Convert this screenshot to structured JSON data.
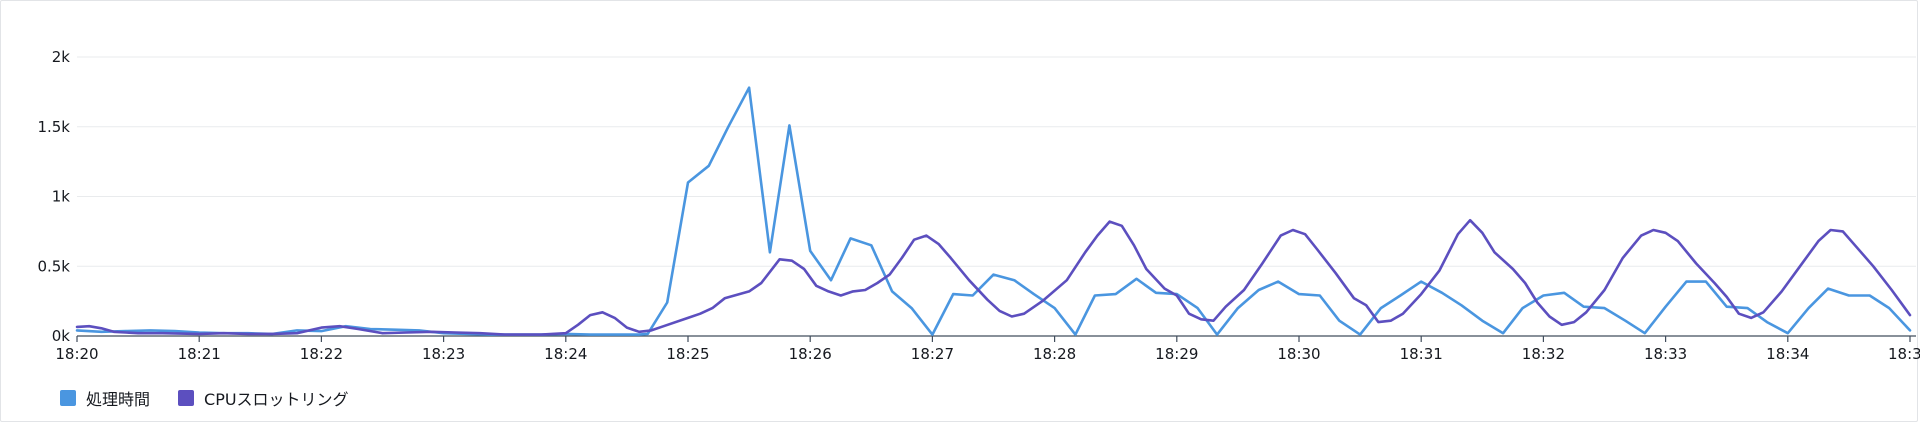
{
  "chart_data": {
    "type": "line",
    "x_ticks": [
      "18:20",
      "18:21",
      "18:22",
      "18:23",
      "18:24",
      "18:25",
      "18:26",
      "18:27",
      "18:28",
      "18:29",
      "18:30",
      "18:31",
      "18:32",
      "18:33",
      "18:34",
      "18:3"
    ],
    "y_ticks": [
      "0k",
      "0.5k",
      "1k",
      "1.5k",
      "2k"
    ],
    "ylim": [
      0,
      2000
    ],
    "xlim_minutes": [
      0,
      15
    ],
    "grid": "horizontal",
    "legend_position": "bottom-left",
    "series": [
      {
        "name": "処理時間",
        "color": "#4a96e0",
        "points": [
          [
            0,
            40
          ],
          [
            0.2,
            30
          ],
          [
            0.4,
            35
          ],
          [
            0.6,
            40
          ],
          [
            0.8,
            35
          ],
          [
            1,
            25
          ],
          [
            1.2,
            20
          ],
          [
            1.4,
            20
          ],
          [
            1.6,
            15
          ],
          [
            1.8,
            40
          ],
          [
            2,
            35
          ],
          [
            2.2,
            70
          ],
          [
            2.4,
            50
          ],
          [
            2.6,
            45
          ],
          [
            2.8,
            40
          ],
          [
            3,
            20
          ],
          [
            3.2,
            15
          ],
          [
            3.4,
            10
          ],
          [
            3.6,
            10
          ],
          [
            3.8,
            10
          ],
          [
            4,
            15
          ],
          [
            4.2,
            10
          ],
          [
            4.4,
            10
          ],
          [
            4.6,
            10
          ],
          [
            4.67,
            15
          ],
          [
            4.83,
            240
          ],
          [
            5,
            1100
          ],
          [
            5.17,
            1220
          ],
          [
            5.33,
            1500
          ],
          [
            5.5,
            1780
          ],
          [
            5.67,
            600
          ],
          [
            5.83,
            1510
          ],
          [
            6,
            610
          ],
          [
            6.17,
            400
          ],
          [
            6.33,
            700
          ],
          [
            6.5,
            650
          ],
          [
            6.67,
            320
          ],
          [
            6.83,
            200
          ],
          [
            7,
            10
          ],
          [
            7.17,
            300
          ],
          [
            7.33,
            290
          ],
          [
            7.5,
            440
          ],
          [
            7.67,
            400
          ],
          [
            7.83,
            300
          ],
          [
            8,
            200
          ],
          [
            8.17,
            10
          ],
          [
            8.33,
            290
          ],
          [
            8.5,
            300
          ],
          [
            8.67,
            410
          ],
          [
            8.83,
            310
          ],
          [
            9,
            300
          ],
          [
            9.17,
            200
          ],
          [
            9.33,
            10
          ],
          [
            9.5,
            200
          ],
          [
            9.67,
            330
          ],
          [
            9.83,
            390
          ],
          [
            10,
            300
          ],
          [
            10.17,
            290
          ],
          [
            10.33,
            110
          ],
          [
            10.5,
            10
          ],
          [
            10.67,
            200
          ],
          [
            10.83,
            290
          ],
          [
            11,
            390
          ],
          [
            11.17,
            310
          ],
          [
            11.33,
            220
          ],
          [
            11.5,
            110
          ],
          [
            11.67,
            20
          ],
          [
            11.83,
            200
          ],
          [
            12,
            290
          ],
          [
            12.17,
            310
          ],
          [
            12.33,
            210
          ],
          [
            12.5,
            200
          ],
          [
            12.67,
            110
          ],
          [
            12.83,
            20
          ],
          [
            13,
            210
          ],
          [
            13.17,
            390
          ],
          [
            13.33,
            390
          ],
          [
            13.5,
            210
          ],
          [
            13.67,
            200
          ],
          [
            13.83,
            100
          ],
          [
            14,
            20
          ],
          [
            14.17,
            200
          ],
          [
            14.33,
            340
          ],
          [
            14.5,
            290
          ],
          [
            14.67,
            290
          ],
          [
            14.83,
            200
          ],
          [
            15,
            40
          ]
        ]
      },
      {
        "name": "CPUスロットリング",
        "color": "#5c4fbf",
        "points": [
          [
            0,
            65
          ],
          [
            0.1,
            70
          ],
          [
            0.2,
            55
          ],
          [
            0.3,
            30
          ],
          [
            0.5,
            20
          ],
          [
            0.7,
            20
          ],
          [
            1,
            15
          ],
          [
            1.2,
            20
          ],
          [
            1.4,
            15
          ],
          [
            1.6,
            15
          ],
          [
            1.8,
            20
          ],
          [
            2,
            60
          ],
          [
            2.15,
            70
          ],
          [
            2.3,
            50
          ],
          [
            2.5,
            20
          ],
          [
            2.7,
            25
          ],
          [
            2.9,
            30
          ],
          [
            3.1,
            25
          ],
          [
            3.3,
            20
          ],
          [
            3.5,
            10
          ],
          [
            3.8,
            10
          ],
          [
            4,
            20
          ],
          [
            4.1,
            80
          ],
          [
            4.2,
            150
          ],
          [
            4.3,
            170
          ],
          [
            4.4,
            130
          ],
          [
            4.5,
            60
          ],
          [
            4.6,
            30
          ],
          [
            4.7,
            40
          ],
          [
            4.8,
            70
          ],
          [
            5,
            130
          ],
          [
            5.1,
            160
          ],
          [
            5.2,
            200
          ],
          [
            5.3,
            270
          ],
          [
            5.5,
            320
          ],
          [
            5.6,
            380
          ],
          [
            5.75,
            550
          ],
          [
            5.85,
            540
          ],
          [
            5.95,
            480
          ],
          [
            6.05,
            360
          ],
          [
            6.15,
            320
          ],
          [
            6.25,
            290
          ],
          [
            6.35,
            320
          ],
          [
            6.45,
            330
          ],
          [
            6.55,
            380
          ],
          [
            6.65,
            440
          ],
          [
            6.75,
            560
          ],
          [
            6.85,
            690
          ],
          [
            6.95,
            720
          ],
          [
            7.05,
            660
          ],
          [
            7.15,
            560
          ],
          [
            7.3,
            400
          ],
          [
            7.45,
            260
          ],
          [
            7.55,
            180
          ],
          [
            7.65,
            140
          ],
          [
            7.75,
            160
          ],
          [
            7.9,
            250
          ],
          [
            8.1,
            400
          ],
          [
            8.25,
            600
          ],
          [
            8.35,
            720
          ],
          [
            8.45,
            820
          ],
          [
            8.55,
            790
          ],
          [
            8.65,
            650
          ],
          [
            8.75,
            480
          ],
          [
            8.9,
            340
          ],
          [
            9,
            290
          ],
          [
            9.1,
            160
          ],
          [
            9.2,
            120
          ],
          [
            9.3,
            110
          ],
          [
            9.4,
            210
          ],
          [
            9.55,
            330
          ],
          [
            9.7,
            520
          ],
          [
            9.85,
            720
          ],
          [
            9.95,
            760
          ],
          [
            10.05,
            730
          ],
          [
            10.15,
            620
          ],
          [
            10.3,
            450
          ],
          [
            10.45,
            270
          ],
          [
            10.55,
            220
          ],
          [
            10.65,
            100
          ],
          [
            10.75,
            110
          ],
          [
            10.85,
            160
          ],
          [
            11,
            300
          ],
          [
            11.15,
            470
          ],
          [
            11.3,
            730
          ],
          [
            11.4,
            830
          ],
          [
            11.5,
            740
          ],
          [
            11.6,
            600
          ],
          [
            11.75,
            480
          ],
          [
            11.85,
            380
          ],
          [
            11.95,
            240
          ],
          [
            12.05,
            140
          ],
          [
            12.15,
            80
          ],
          [
            12.25,
            100
          ],
          [
            12.35,
            170
          ],
          [
            12.5,
            330
          ],
          [
            12.65,
            560
          ],
          [
            12.8,
            720
          ],
          [
            12.9,
            760
          ],
          [
            13,
            740
          ],
          [
            13.1,
            680
          ],
          [
            13.25,
            520
          ],
          [
            13.4,
            380
          ],
          [
            13.5,
            280
          ],
          [
            13.6,
            160
          ],
          [
            13.7,
            130
          ],
          [
            13.8,
            170
          ],
          [
            13.95,
            320
          ],
          [
            14.1,
            500
          ],
          [
            14.25,
            680
          ],
          [
            14.35,
            760
          ],
          [
            14.45,
            750
          ],
          [
            14.55,
            650
          ],
          [
            14.7,
            500
          ],
          [
            14.85,
            330
          ],
          [
            15,
            150
          ]
        ]
      }
    ]
  }
}
